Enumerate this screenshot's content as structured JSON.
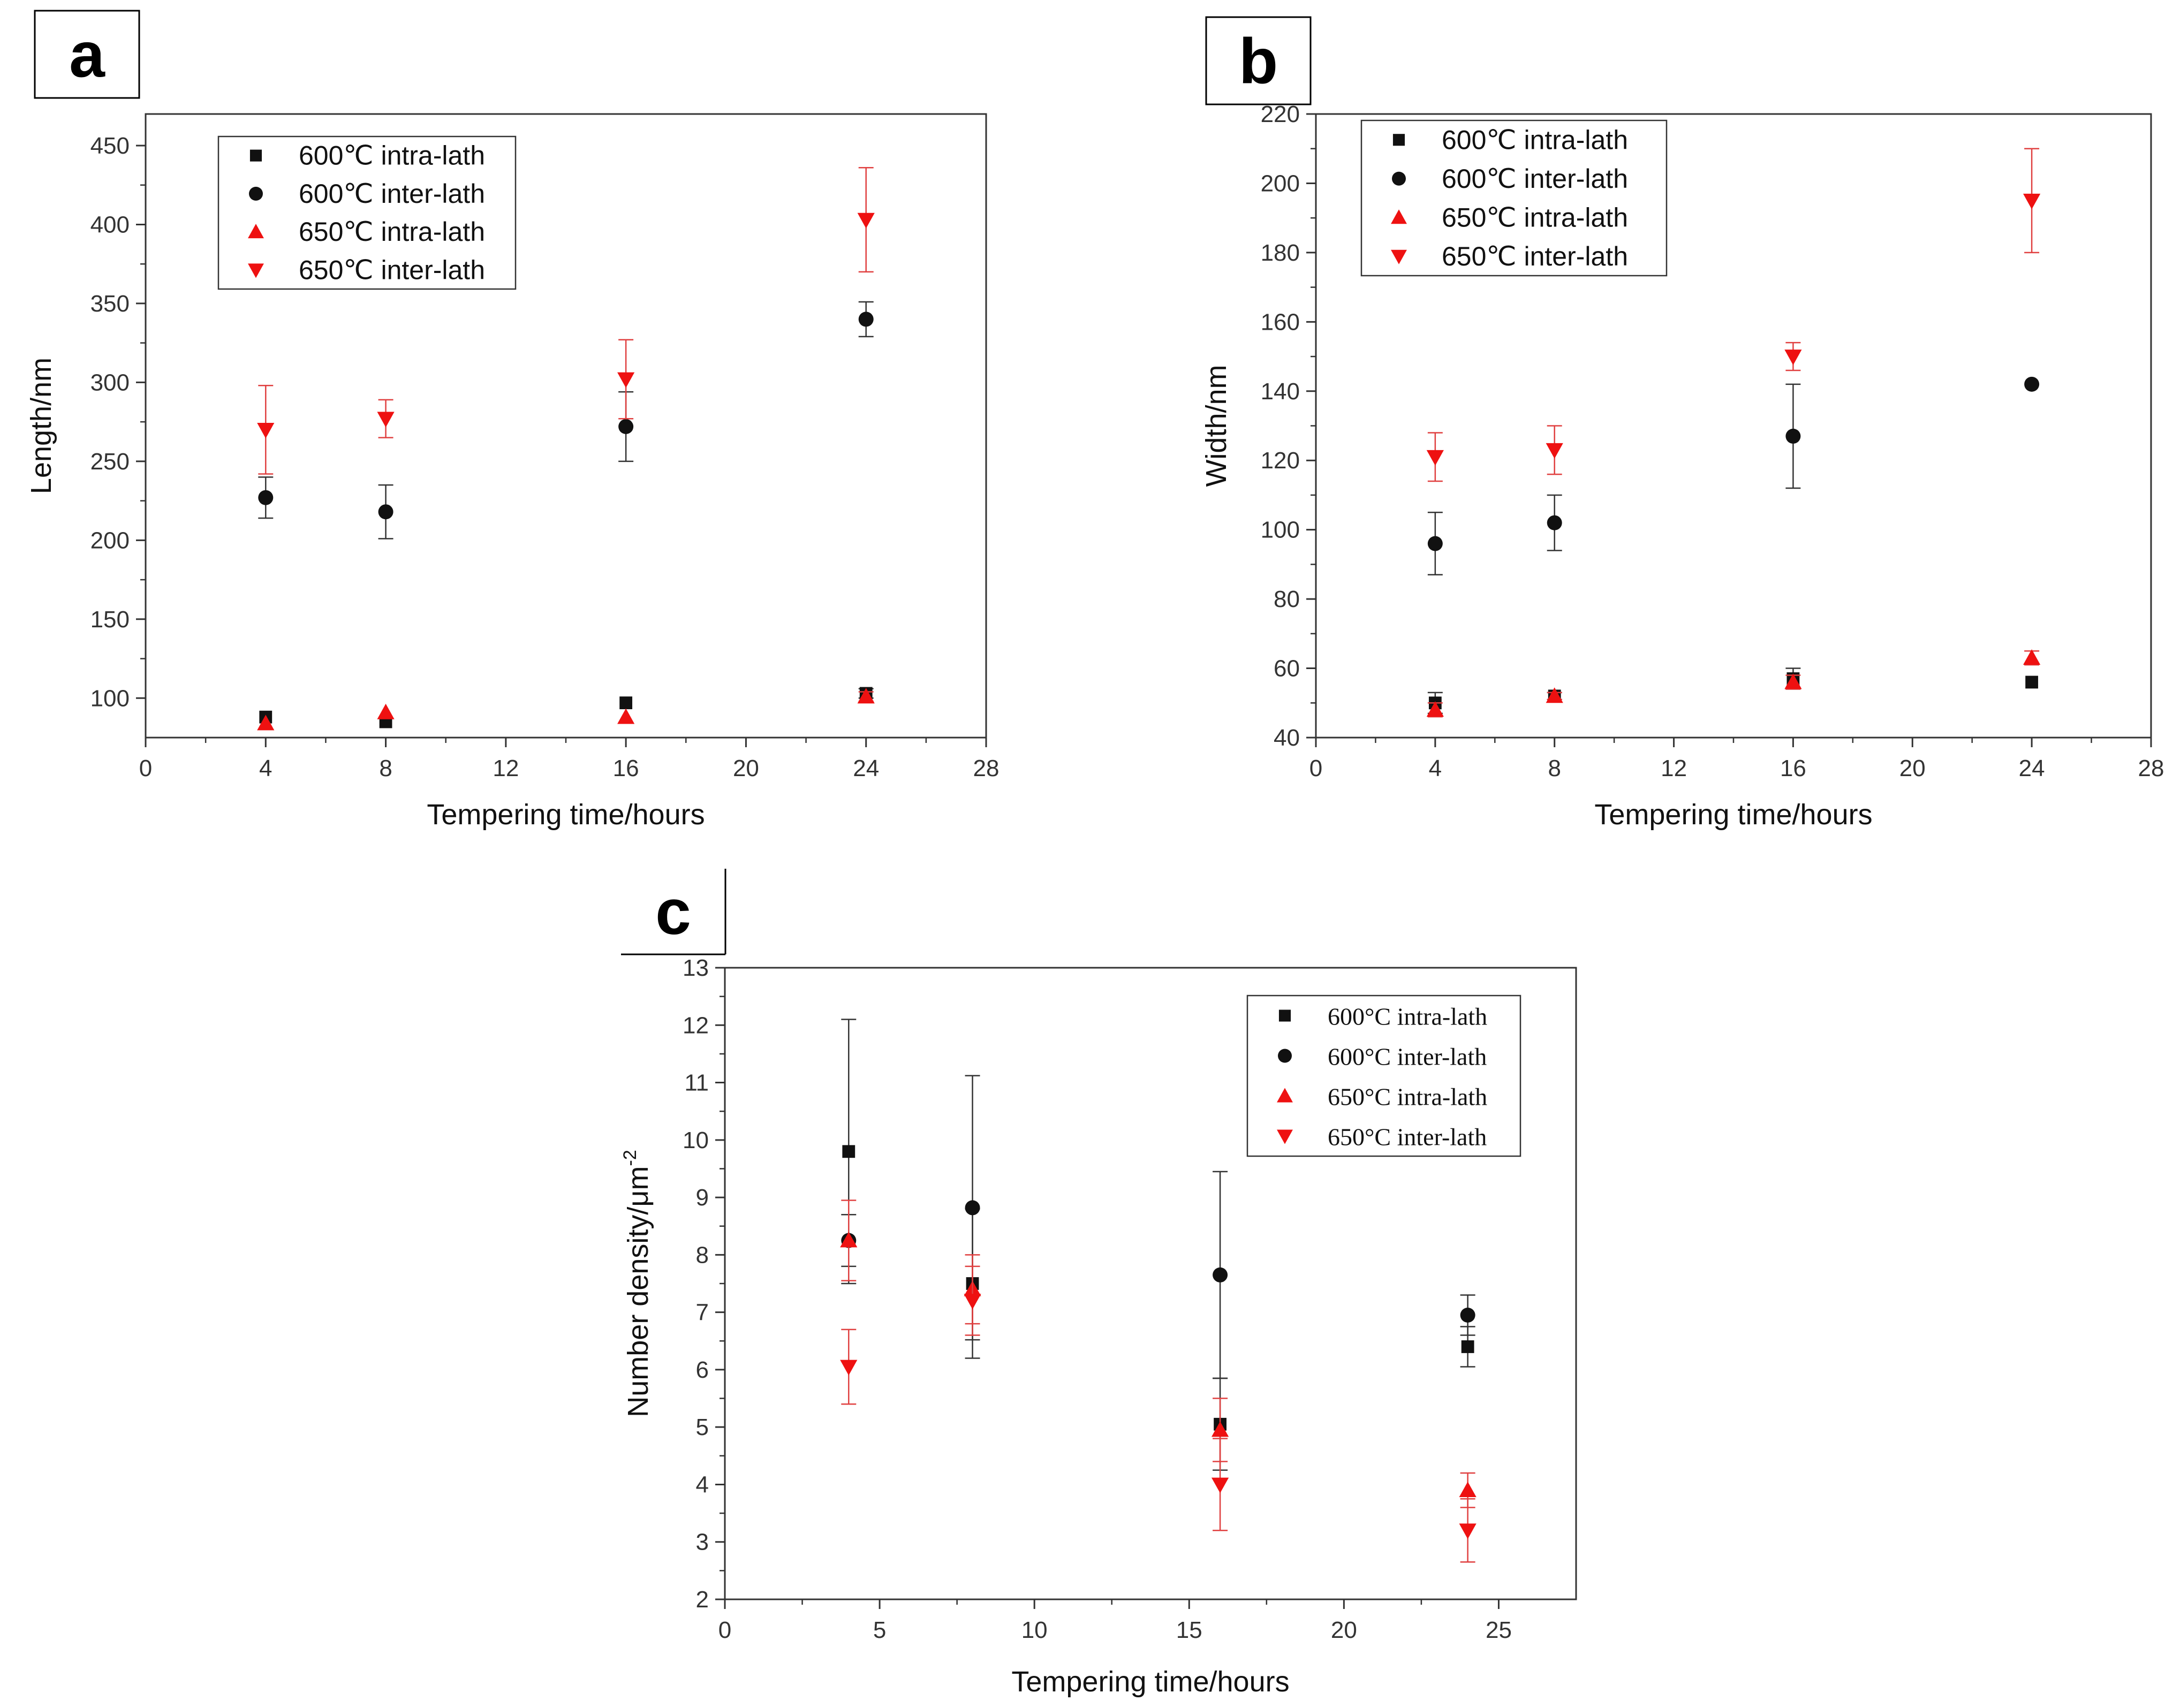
{
  "colors": {
    "black": "#111111",
    "red": "#ee1111",
    "red_err": "#e04040",
    "axis": "#333333"
  },
  "chart_data": [
    {
      "panel": "a",
      "type": "scatter",
      "xlabel": "Tempering time/hours",
      "ylabel": "Length/nm",
      "xlim": [
        0,
        28
      ],
      "ylim": [
        75,
        470
      ],
      "xticks": [
        0,
        4,
        8,
        12,
        16,
        20,
        24,
        28
      ],
      "yticks": [
        100,
        150,
        200,
        250,
        300,
        350,
        400,
        450
      ],
      "legend_position": "top-left",
      "series": [
        {
          "name": "600℃ intra-lath",
          "marker": "square",
          "color": "black",
          "points": [
            {
              "x": 4,
              "y": 88,
              "err": 0
            },
            {
              "x": 8,
              "y": 85,
              "err": 0
            },
            {
              "x": 16,
              "y": 97,
              "err": 0
            },
            {
              "x": 24,
              "y": 103,
              "err": 3
            }
          ]
        },
        {
          "name": "600℃ inter-lath",
          "marker": "circle",
          "color": "black",
          "points": [
            {
              "x": 4,
              "y": 227,
              "err": 13
            },
            {
              "x": 8,
              "y": 218,
              "err": 17
            },
            {
              "x": 16,
              "y": 272,
              "err": 22
            },
            {
              "x": 24,
              "y": 340,
              "err": 11
            }
          ]
        },
        {
          "name": "650℃ intra-lath",
          "marker": "triangle-up",
          "color": "red",
          "points": [
            {
              "x": 4,
              "y": 84,
              "err": 0
            },
            {
              "x": 8,
              "y": 91,
              "err": 0
            },
            {
              "x": 16,
              "y": 88,
              "err": 0
            },
            {
              "x": 24,
              "y": 101,
              "err": 3
            }
          ]
        },
        {
          "name": "650℃ inter-lath",
          "marker": "triangle-down",
          "color": "red",
          "points": [
            {
              "x": 4,
              "y": 270,
              "err": 28
            },
            {
              "x": 8,
              "y": 277,
              "err": 12
            },
            {
              "x": 16,
              "y": 302,
              "err": 25
            },
            {
              "x": 24,
              "y": 403,
              "err": 33
            }
          ]
        }
      ]
    },
    {
      "panel": "b",
      "type": "scatter",
      "xlabel": "Tempering time/hours",
      "ylabel": "Width/nm",
      "xlim": [
        0,
        28
      ],
      "ylim": [
        40,
        220
      ],
      "xticks": [
        0,
        4,
        8,
        12,
        16,
        20,
        24,
        28
      ],
      "yticks": [
        40,
        60,
        80,
        100,
        120,
        140,
        160,
        180,
        200,
        220
      ],
      "legend_position": "top-left",
      "series": [
        {
          "name": "600℃ intra-lath",
          "marker": "square",
          "color": "black",
          "points": [
            {
              "x": 4,
              "y": 50,
              "err": 3
            },
            {
              "x": 8,
              "y": 52,
              "err": 1
            },
            {
              "x": 16,
              "y": 57,
              "err": 3
            },
            {
              "x": 24,
              "y": 56,
              "err": 0
            }
          ]
        },
        {
          "name": "600℃ inter-lath",
          "marker": "circle",
          "color": "black",
          "points": [
            {
              "x": 4,
              "y": 96,
              "err": 9
            },
            {
              "x": 8,
              "y": 102,
              "err": 8
            },
            {
              "x": 16,
              "y": 127,
              "err": 15
            },
            {
              "x": 24,
              "y": 142,
              "err": 0
            }
          ]
        },
        {
          "name": "650℃ intra-lath",
          "marker": "triangle-up",
          "color": "red",
          "points": [
            {
              "x": 4,
              "y": 48,
              "err": 2
            },
            {
              "x": 8,
              "y": 52,
              "err": 1
            },
            {
              "x": 16,
              "y": 56,
              "err": 2
            },
            {
              "x": 24,
              "y": 63,
              "err": 2
            }
          ]
        },
        {
          "name": "650℃ inter-lath",
          "marker": "triangle-down",
          "color": "red",
          "points": [
            {
              "x": 4,
              "y": 121,
              "err": 7
            },
            {
              "x": 8,
              "y": 123,
              "err": 7
            },
            {
              "x": 16,
              "y": 150,
              "err": 4
            },
            {
              "x": 24,
              "y": 195,
              "err": 15
            }
          ]
        }
      ]
    },
    {
      "panel": "c",
      "type": "scatter",
      "xlabel": "Tempering time/hours",
      "ylabel": "Number density/μm",
      "ylabel_sup": "-2",
      "xlim": [
        0,
        27.5
      ],
      "ylim": [
        2,
        13
      ],
      "xticks": [
        0,
        5,
        10,
        15,
        20,
        25
      ],
      "yticks": [
        2,
        3,
        4,
        5,
        6,
        7,
        8,
        9,
        10,
        11,
        12,
        13
      ],
      "legend_position": "top-right",
      "series": [
        {
          "name": "600°C intra-lath",
          "marker": "square",
          "color": "black",
          "points": [
            {
              "x": 4,
              "y": 9.8,
              "err": 2.3
            },
            {
              "x": 8,
              "y": 7.5,
              "err": 1.3
            },
            {
              "x": 16,
              "y": 5.05,
              "err": 0.8
            },
            {
              "x": 24,
              "y": 6.4,
              "err": 0.35
            }
          ]
        },
        {
          "name": "600°C inter-lath",
          "marker": "circle",
          "color": "black",
          "points": [
            {
              "x": 4,
              "y": 8.25,
              "err": 0.45
            },
            {
              "x": 8,
              "y": 8.82,
              "err": 2.3
            },
            {
              "x": 16,
              "y": 7.65,
              "err": 1.8
            },
            {
              "x": 24,
              "y": 6.95,
              "err": 0.35
            }
          ]
        },
        {
          "name": "650°C intra-lath",
          "marker": "triangle-up",
          "color": "red",
          "points": [
            {
              "x": 4,
              "y": 8.25,
              "err": 0.7
            },
            {
              "x": 8,
              "y": 7.4,
              "err": 0.6
            },
            {
              "x": 16,
              "y": 4.95,
              "err": 0.55
            },
            {
              "x": 24,
              "y": 3.9,
              "err": 0.3
            }
          ]
        },
        {
          "name": "650°C inter-lath",
          "marker": "triangle-down",
          "color": "red",
          "points": [
            {
              "x": 4,
              "y": 6.05,
              "err": 0.65
            },
            {
              "x": 8,
              "y": 7.2,
              "err": 0.6
            },
            {
              "x": 16,
              "y": 4.0,
              "err": 0.8
            },
            {
              "x": 24,
              "y": 3.2,
              "err": 0.55
            }
          ]
        }
      ]
    }
  ]
}
